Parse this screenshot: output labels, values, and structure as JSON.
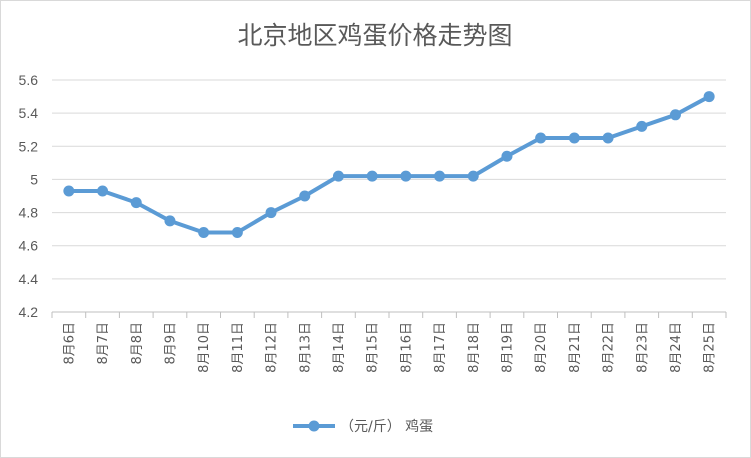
{
  "chart_data": {
    "type": "line",
    "title": "北京地区鸡蛋价格走势图",
    "xlabel": "",
    "ylabel": "",
    "ylim": [
      4.2,
      5.6
    ],
    "ytick_step": 0.2,
    "yticks": [
      "4.2",
      "4.4",
      "4.6",
      "4.8",
      "5",
      "5.2",
      "5.4",
      "5.6"
    ],
    "categories": [
      "8月6日",
      "8月7日",
      "8月8日",
      "8月9日",
      "8月10日",
      "8月11日",
      "8月12日",
      "8月13日",
      "8月14日",
      "8月15日",
      "8月16日",
      "8月17日",
      "8月18日",
      "8月19日",
      "8月20日",
      "8月21日",
      "8月22日",
      "8月23日",
      "8月24日",
      "8月25日"
    ],
    "series": [
      {
        "name": "（元/斤） 鸡蛋",
        "color": "#5b9bd5",
        "values": [
          4.93,
          4.93,
          4.86,
          4.75,
          4.68,
          4.68,
          4.8,
          4.9,
          5.02,
          5.02,
          5.02,
          5.02,
          5.02,
          5.14,
          5.25,
          5.25,
          5.25,
          5.32,
          5.39,
          5.5
        ]
      }
    ],
    "grid": true,
    "legend": "bottom"
  }
}
